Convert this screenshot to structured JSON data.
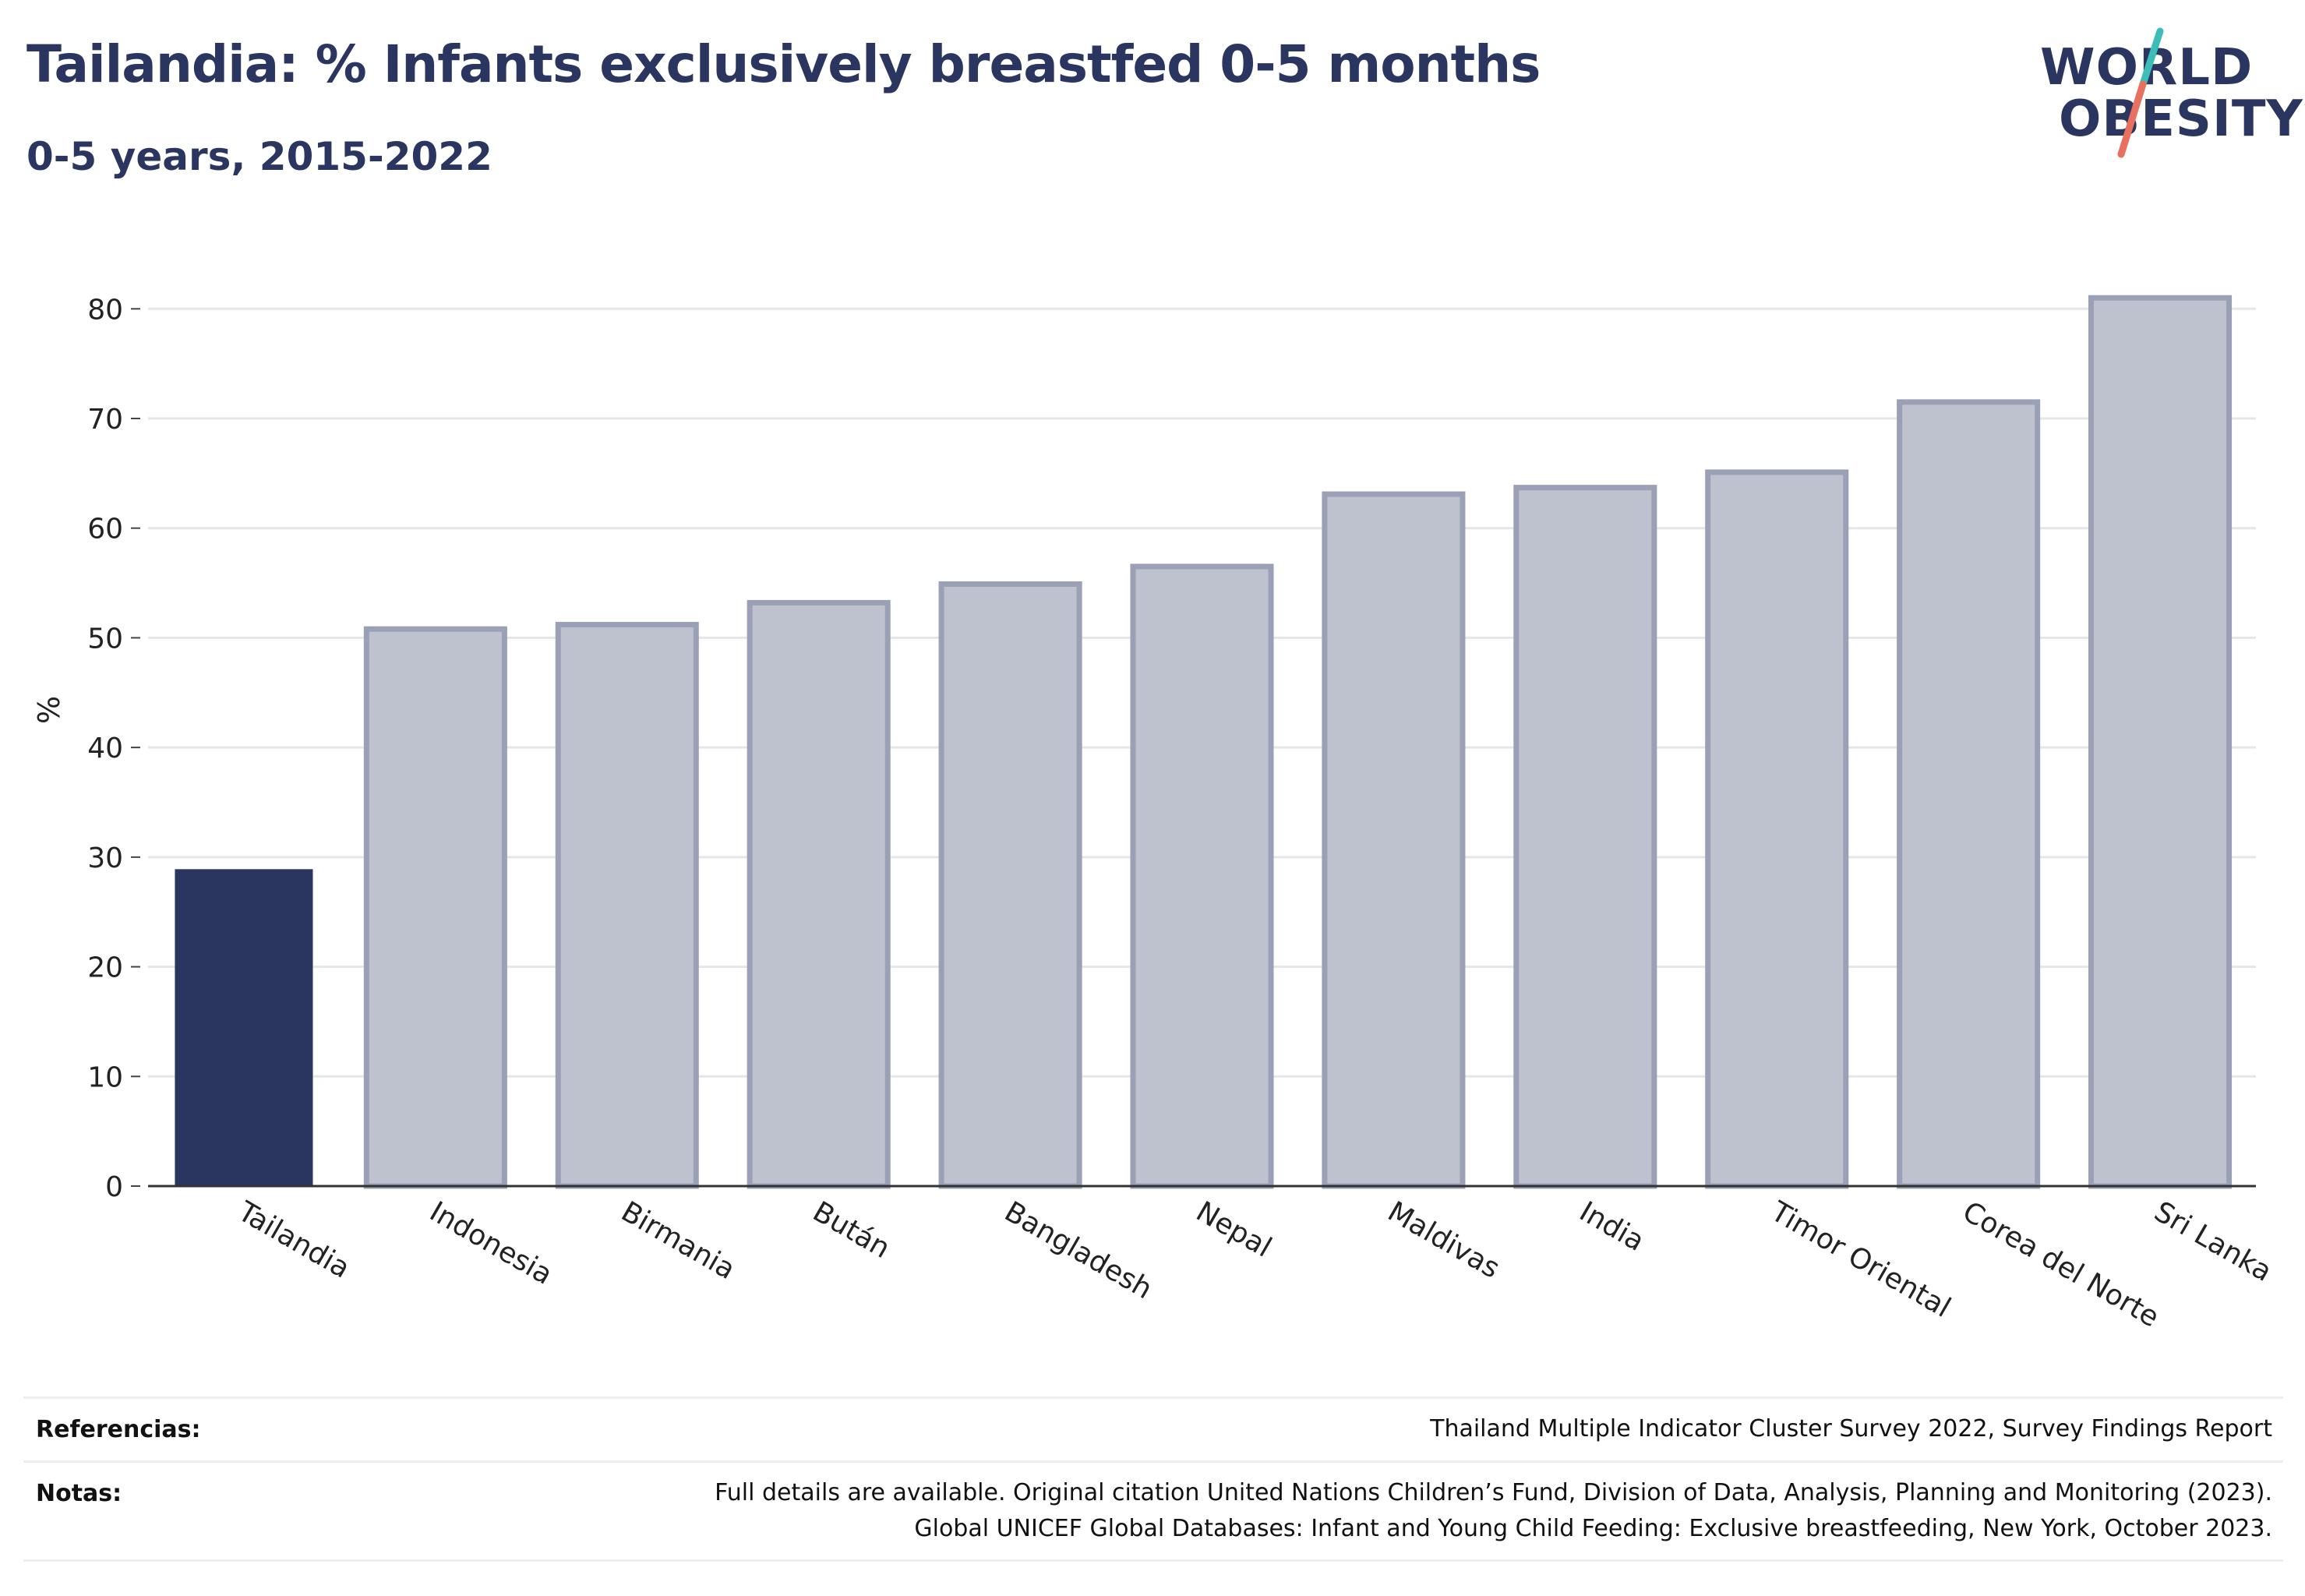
{
  "header": {
    "title": "Tailandia: % Infants exclusively breastfed 0-5 months",
    "subtitle": "0-5 years, 2015-2022"
  },
  "logo": {
    "line1": "WORLD",
    "line2": "OBESITY",
    "colors": {
      "text": "#2b3660",
      "slash_top": "#3cbdb8",
      "slash_bottom": "#e8705f"
    }
  },
  "colors": {
    "highlight_bar": "#2b3660",
    "other_bar_fill": "#bec2cf",
    "other_bar_stroke": "#9aa0b6"
  },
  "chart_data": {
    "type": "bar",
    "title": "Tailandia: % Infants exclusively breastfed 0-5 months",
    "subtitle": "0-5 years, 2015-2022",
    "xlabel": "",
    "ylabel": "%",
    "ylim": [
      0,
      84
    ],
    "yticks": [
      0,
      10,
      20,
      30,
      40,
      50,
      60,
      70,
      80
    ],
    "grid": true,
    "legend": "none",
    "highlight": "Tailandia",
    "categories": [
      "Tailandia",
      "Indonesia",
      "Birmania",
      "Bután",
      "Bangladesh",
      "Nepal",
      "Maldivas",
      "India",
      "Timor Oriental",
      "Corea del Norte",
      "Sri Lanka"
    ],
    "values": [
      28.9,
      50.8,
      51.2,
      53.2,
      54.9,
      56.5,
      63.1,
      63.7,
      65.1,
      71.5,
      81.0
    ]
  },
  "footer": {
    "references_label": "Referencias:",
    "references_value": "Thailand Multiple Indicator Cluster Survey 2022, Survey Findings Report",
    "notes_label": "Notas:",
    "notes_line1": "Full details are available. Original citation United Nations Children’s Fund, Division of Data, Analysis, Planning and Monitoring (2023).",
    "notes_line2": "Global UNICEF Global Databases: Infant and Young Child Feeding: Exclusive breastfeeding, New York, October 2023."
  }
}
